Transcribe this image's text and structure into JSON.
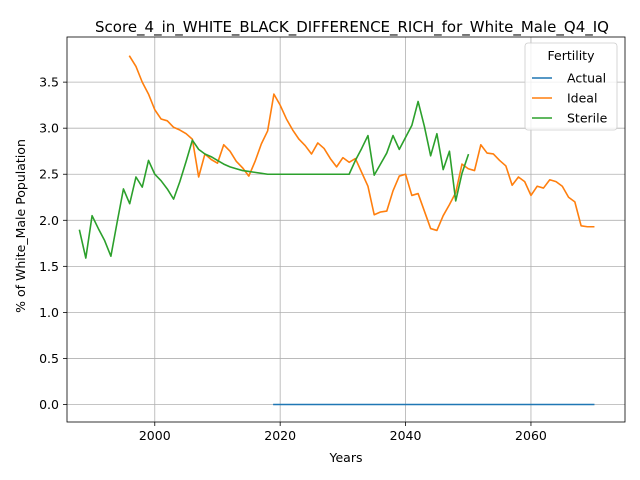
{
  "chart_data": {
    "type": "line",
    "title": "Score_4_in_WHITE_BLACK_DIFFERENCE_RICH_for_White_Male_Q4_IQ",
    "xlabel": "Years",
    "ylabel": "% of White_Male Population",
    "xlim": [
      1986,
      2075
    ],
    "ylim": [
      -0.19,
      3.99
    ],
    "xticks": [
      2000,
      2020,
      2040,
      2060
    ],
    "yticks": [
      0.0,
      0.5,
      1.0,
      1.5,
      2.0,
      2.5,
      3.0,
      3.5
    ],
    "grid": true,
    "legend": {
      "title": "Fertility",
      "position": "top-right"
    },
    "series": [
      {
        "name": "Actual",
        "color": "#1f77b4",
        "x": [
          2019,
          2030,
          2040,
          2050,
          2060,
          2070
        ],
        "y": [
          0.0,
          0.0,
          0.0,
          0.0,
          0.0,
          0.0
        ]
      },
      {
        "name": "Ideal",
        "color": "#ff7f0e",
        "x": [
          1996,
          1997,
          1998,
          1999,
          2000,
          2001,
          2002,
          2003,
          2004,
          2005,
          2006,
          2007,
          2008,
          2009,
          2010,
          2011,
          2012,
          2013,
          2014,
          2015,
          2016,
          2017,
          2018,
          2019,
          2020,
          2021,
          2022,
          2023,
          2024,
          2025,
          2026,
          2027,
          2028,
          2029,
          2030,
          2031,
          2032,
          2033,
          2034,
          2035,
          2036,
          2037,
          2038,
          2039,
          2040,
          2041,
          2042,
          2043,
          2044,
          2045,
          2046,
          2047,
          2048,
          2049,
          2050,
          2051,
          2052,
          2053,
          2054,
          2055,
          2056,
          2057,
          2058,
          2059,
          2060,
          2061,
          2062,
          2063,
          2064,
          2065,
          2066,
          2067,
          2068,
          2069,
          2070
        ],
        "y": [
          3.78,
          3.67,
          3.5,
          3.37,
          3.2,
          3.1,
          3.08,
          3.01,
          2.98,
          2.94,
          2.88,
          2.47,
          2.72,
          2.66,
          2.62,
          2.82,
          2.75,
          2.64,
          2.57,
          2.48,
          2.64,
          2.83,
          2.97,
          3.37,
          3.25,
          3.1,
          2.98,
          2.88,
          2.81,
          2.72,
          2.84,
          2.78,
          2.67,
          2.58,
          2.68,
          2.63,
          2.67,
          2.52,
          2.37,
          2.06,
          2.09,
          2.1,
          2.32,
          2.48,
          2.5,
          2.27,
          2.29,
          2.1,
          1.91,
          1.89,
          2.05,
          2.17,
          2.3,
          2.61,
          2.56,
          2.54,
          2.82,
          2.73,
          2.72,
          2.65,
          2.59,
          2.38,
          2.47,
          2.42,
          2.27,
          2.37,
          2.35,
          2.44,
          2.42,
          2.37,
          2.25,
          2.2,
          1.94,
          1.93,
          1.93
        ]
      },
      {
        "name": "Sterile",
        "color": "#2ca02c",
        "x": [
          1988,
          1989,
          1990,
          1991,
          1992,
          1993,
          1994,
          1995,
          1996,
          1997,
          1998,
          1999,
          2000,
          2001,
          2002,
          2003,
          2004,
          2005,
          2006,
          2007,
          2008,
          2009,
          2010,
          2011,
          2012,
          2013,
          2014,
          2015,
          2016,
          2017,
          2018,
          2019,
          2020,
          2021,
          2022,
          2023,
          2024,
          2025,
          2026,
          2027,
          2028,
          2029,
          2030,
          2031,
          2032,
          2033,
          2034,
          2035,
          2036,
          2037,
          2038,
          2039,
          2040,
          2041,
          2042,
          2043,
          2044,
          2045,
          2046,
          2047,
          2048,
          2049,
          2050
        ],
        "y": [
          1.89,
          1.59,
          2.05,
          1.91,
          1.78,
          1.61,
          1.98,
          2.34,
          2.18,
          2.47,
          2.36,
          2.65,
          2.5,
          2.43,
          2.34,
          2.23,
          2.42,
          2.64,
          2.87,
          2.77,
          2.72,
          2.69,
          2.65,
          2.61,
          2.58,
          2.56,
          2.54,
          2.53,
          2.52,
          2.51,
          2.5,
          2.5,
          2.5,
          2.5,
          2.5,
          2.5,
          2.5,
          2.5,
          2.5,
          2.5,
          2.5,
          2.5,
          2.5,
          2.5,
          2.65,
          2.78,
          2.92,
          2.49,
          2.61,
          2.73,
          2.92,
          2.77,
          2.9,
          3.03,
          3.29,
          3.02,
          2.7,
          2.94,
          2.55,
          2.75,
          2.21,
          2.51,
          2.71
        ]
      }
    ]
  }
}
